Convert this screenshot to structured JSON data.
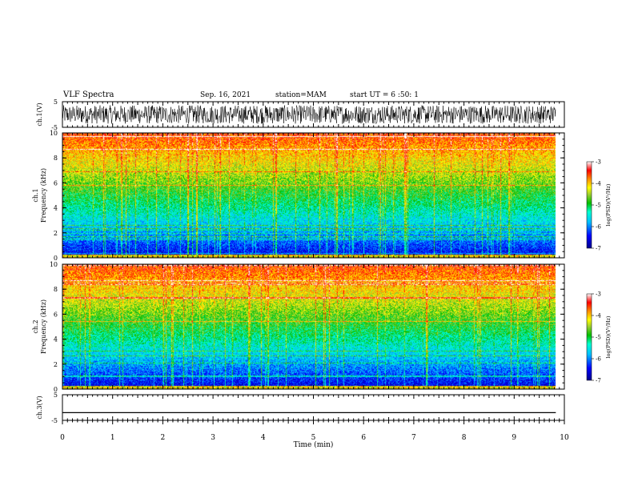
{
  "header": {
    "title": "VLF Spectra",
    "date": "Sep. 16, 2021",
    "station": "station=MAM",
    "start": "start UT = 6 :50: 1"
  },
  "chart_data": [
    {
      "type": "line",
      "panel": "ch1-waveform",
      "ylabel": "ch.1(V)",
      "yticks": [
        "5",
        "-5"
      ],
      "ylim": [
        -5,
        5
      ],
      "x": [
        0,
        9.83
      ],
      "description_values": "dense noise waveform roughly within -5..5 V"
    },
    {
      "type": "heatmap",
      "panel": "ch1-spectrogram",
      "ylabel_top": "ch.1",
      "ylabel": "Frequency (kHz)",
      "yticks": [
        "0",
        "2",
        "4",
        "6",
        "8",
        "10"
      ],
      "ylim": [
        0,
        10
      ],
      "x_range": [
        0,
        9.83
      ],
      "colorbar": {
        "label": "log(PSD)(V²/Hz)",
        "ticks": [
          "-3",
          "-4",
          "-5",
          "-6",
          "-7"
        ],
        "range": [
          -7,
          -3
        ]
      }
    },
    {
      "type": "heatmap",
      "panel": "ch2-spectrogram",
      "ylabel_top": "ch.2",
      "ylabel": "Frequency (kHz)",
      "yticks": [
        "0",
        "2",
        "4",
        "6",
        "8",
        "10"
      ],
      "ylim": [
        0,
        10
      ],
      "x_range": [
        0,
        9.83
      ],
      "colorbar": {
        "label": "log(PSD)(V²/Hz)",
        "ticks": [
          "-3",
          "-4",
          "-5",
          "-6",
          "-7"
        ],
        "range": [
          -7,
          -3
        ]
      }
    },
    {
      "type": "line",
      "panel": "ch3-waveform",
      "ylabel": "ch.3(V)",
      "yticks": [
        "5",
        "-5"
      ],
      "ylim": [
        -5,
        5
      ],
      "x": [
        0,
        9.83
      ],
      "y": [
        -2,
        -2
      ]
    }
  ],
  "xaxis": {
    "label": "Time (min)",
    "ticks": [
      "0",
      "1",
      "2",
      "3",
      "4",
      "5",
      "6",
      "7",
      "8",
      "9",
      "10"
    ],
    "xlim": [
      0,
      10
    ]
  }
}
